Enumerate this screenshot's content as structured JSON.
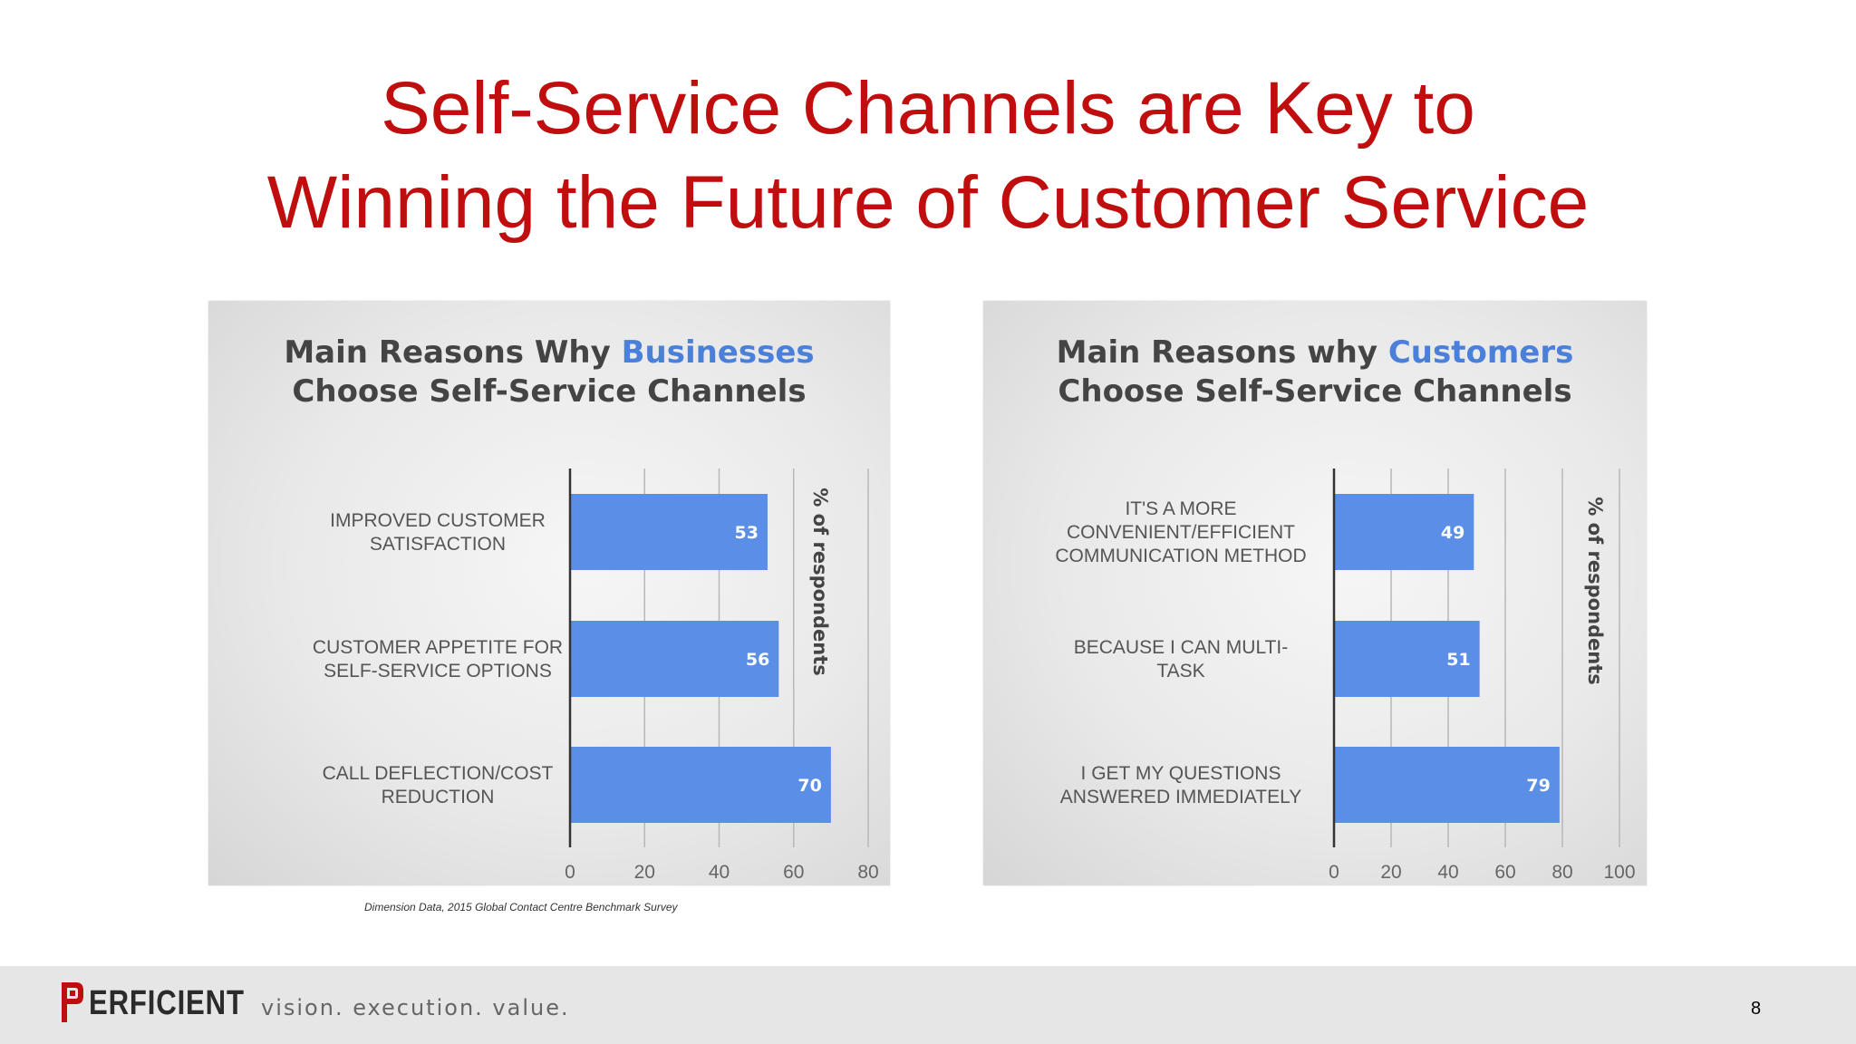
{
  "slide": {
    "title_line1": "Self-Service Channels are Key to",
    "title_line2": "Winning the Future of Customer Service",
    "source_note": "Dimension Data, 2015 Global Contact Centre Benchmark Survey",
    "page_number": "8"
  },
  "footer": {
    "logo_text": "ERFICIENT",
    "tagline": "vision.  execution.  value."
  },
  "panels": {
    "left": {
      "title_pre": "Main Reasons Why ",
      "title_highlight": "Businesses",
      "title_line2": "Choose Self-Service Channels"
    },
    "right": {
      "title_pre": "Main Reasons why ",
      "title_highlight": "Customers",
      "title_line2": "Choose Self-Service Channels"
    }
  },
  "colors": {
    "title_red": "#c00d0d",
    "bar_blue": "#5b8ee6",
    "highlight_blue": "#4a80d9",
    "panel_text": "#444444"
  },
  "chart_data": [
    {
      "type": "bar",
      "orientation": "horizontal",
      "title": "Main Reasons Why Businesses Choose Self-Service Channels",
      "categories": [
        [
          "IMPROVED CUSTOMER",
          "SATISFACTION"
        ],
        [
          "CUSTOMER APPETITE FOR",
          "SELF-SERVICE OPTIONS"
        ],
        [
          "CALL DEFLECTION/COST",
          "REDUCTION"
        ]
      ],
      "values": [
        53,
        56,
        70
      ],
      "data_labels": [
        "53",
        "56",
        "70"
      ],
      "xlabel": "% of respondents",
      "xlim": [
        0,
        80
      ],
      "ticks": [
        0,
        20,
        40,
        60,
        80
      ],
      "tick_labels": [
        "0",
        "20",
        "40",
        "60",
        "80"
      ],
      "grid": true
    },
    {
      "type": "bar",
      "orientation": "horizontal",
      "title": "Main Reasons why Customers Choose Self-Service Channels",
      "categories": [
        [
          "IT'S A MORE",
          "CONVENIENT/EFFICIENT",
          "COMMUNICATION  METHOD"
        ],
        [
          "BECAUSE I CAN MULTI-",
          "TASK"
        ],
        [
          "I GET MY QUESTIONS",
          "ANSWERED IMMEDIATELY"
        ]
      ],
      "values": [
        49,
        51,
        79
      ],
      "data_labels": [
        "49",
        "51",
        "79"
      ],
      "xlabel": "% of respondents",
      "xlim": [
        0,
        100
      ],
      "ticks": [
        0,
        20,
        40,
        60,
        80,
        100
      ],
      "tick_labels": [
        "0",
        "20",
        "40",
        "60",
        "80",
        "100"
      ],
      "grid": true
    }
  ]
}
